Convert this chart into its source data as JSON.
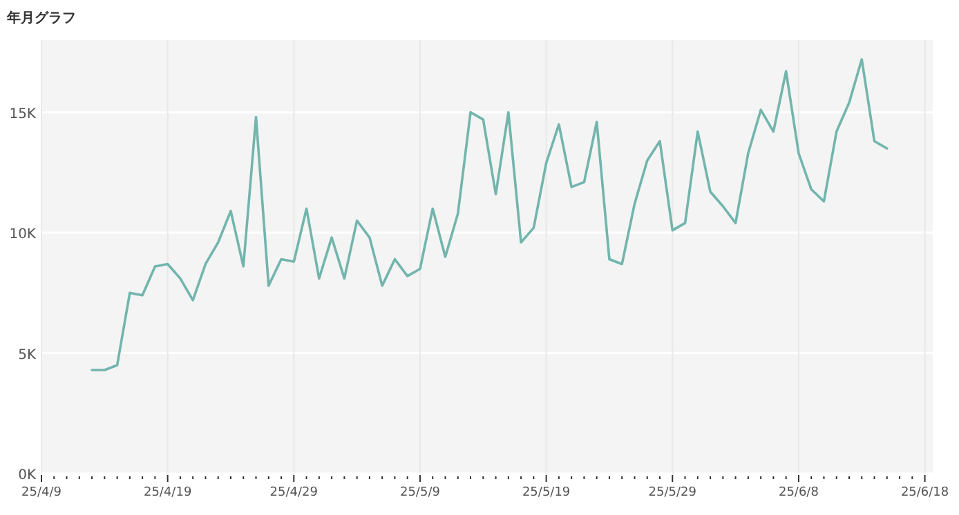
{
  "chart_data": {
    "type": "line",
    "title": "年月グラフ",
    "x": [
      "--04-13",
      "--04-14",
      "--04-15",
      "--04-16",
      "--04-17",
      "--04-18",
      "--04-19",
      "--04-20",
      "--04-21",
      "--04-22",
      "--04-23",
      "--04-24",
      "--04-25",
      "--04-26",
      "--04-27",
      "--04-28",
      "--04-29",
      "--04-30",
      "--05-01",
      "--05-02",
      "--05-03",
      "--05-04",
      "--05-05",
      "--05-06",
      "--05-07",
      "--05-08",
      "--05-09",
      "--05-10",
      "--05-11",
      "--05-12",
      "--05-13",
      "--05-14",
      "--05-15",
      "--05-16",
      "--05-17",
      "--05-18",
      "--05-19",
      "--05-20",
      "--05-21",
      "--05-22",
      "--05-23",
      "--05-24",
      "--05-25",
      "--05-26",
      "--05-27",
      "--05-28",
      "--05-29",
      "--05-30",
      "--05-31",
      "--06-01",
      "--06-02",
      "--06-03",
      "--06-04",
      "--06-05",
      "--06-06",
      "--06-07",
      "--06-08",
      "--06-09",
      "--06-10",
      "--06-11",
      "--06-12",
      "--06-13",
      "--06-14",
      "--06-15"
    ],
    "series": [
      {
        "color": "#72b5ad",
        "values": [
          4300,
          4300,
          4500,
          7500,
          7400,
          8600,
          8700,
          8100,
          7200,
          8700,
          9600,
          10900,
          8600,
          14800,
          7800,
          8900,
          8800,
          11000,
          8100,
          9800,
          8100,
          10500,
          9800,
          7800,
          8900,
          8200,
          8500,
          11000,
          9000,
          10800,
          15000,
          14700,
          11600,
          15000,
          9600,
          10200,
          12900,
          14500,
          11900,
          12100,
          14600,
          8900,
          8700,
          11200,
          13000,
          13800,
          10100,
          10400,
          14200,
          11700,
          11100,
          10400,
          13300,
          15100,
          14200,
          16700,
          13300,
          11800,
          11300,
          14200,
          15400,
          17200,
          13800,
          13500
        ]
      }
    ],
    "xlim": [
      "--04-09",
      "--06-18T15:00"
    ],
    "xticks": [
      {
        "value": "--04-09",
        "label": "25/4/9"
      },
      {
        "value": "--04-19",
        "label": "25/4/19"
      },
      {
        "value": "--04-29",
        "label": "25/4/29"
      },
      {
        "value": "--05-09",
        "label": "25/5/9"
      },
      {
        "value": "--05-19",
        "label": "25/5/19"
      },
      {
        "value": "--05-29",
        "label": "25/5/29"
      },
      {
        "value": "--06-08",
        "label": "25/6/8"
      },
      {
        "value": "--06-18",
        "label": "25/6/18"
      },
      {
        "value": "--04-10",
        "label": null
      },
      {
        "value": "--04-11",
        "label": null
      },
      {
        "value": "--04-12",
        "label": null
      },
      {
        "value": "--04-13",
        "label": null
      },
      {
        "value": "--04-14",
        "label": null
      },
      {
        "value": "--04-15",
        "label": null
      },
      {
        "value": "--04-16",
        "label": null
      },
      {
        "value": "--04-17",
        "label": null
      },
      {
        "value": "--04-18",
        "label": null
      },
      {
        "value": "--04-20",
        "label": null
      },
      {
        "value": "--04-21",
        "label": null
      },
      {
        "value": "--04-22",
        "label": null
      },
      {
        "value": "--04-23",
        "label": null
      },
      {
        "value": "--04-24",
        "label": null
      },
      {
        "value": "--04-25",
        "label": null
      },
      {
        "value": "--04-26",
        "label": null
      },
      {
        "value": "--04-27",
        "label": null
      },
      {
        "value": "--04-28",
        "label": null
      },
      {
        "value": "--04-30",
        "label": null
      },
      {
        "value": "--05-01",
        "label": null
      },
      {
        "value": "--05-02",
        "label": null
      },
      {
        "value": "--05-03",
        "label": null
      },
      {
        "value": "--05-04",
        "label": null
      },
      {
        "value": "--05-05",
        "label": null
      },
      {
        "value": "--05-06",
        "label": null
      },
      {
        "value": "--05-07",
        "label": null
      },
      {
        "value": "--05-08",
        "label": null
      },
      {
        "value": "--05-10",
        "label": null
      },
      {
        "value": "--05-11",
        "label": null
      },
      {
        "value": "--05-12",
        "label": null
      },
      {
        "value": "--05-13",
        "label": null
      },
      {
        "value": "--05-14",
        "label": null
      },
      {
        "value": "--05-15",
        "label": null
      },
      {
        "value": "--05-16",
        "label": null
      },
      {
        "value": "--05-17",
        "label": null
      },
      {
        "value": "--05-18",
        "label": null
      },
      {
        "value": "--05-20",
        "label": null
      },
      {
        "value": "--05-21",
        "label": null
      },
      {
        "value": "--05-22",
        "label": null
      },
      {
        "value": "--05-23",
        "label": null
      },
      {
        "value": "--05-24",
        "label": null
      },
      {
        "value": "--05-25",
        "label": null
      },
      {
        "value": "--05-26",
        "label": null
      },
      {
        "value": "--05-27",
        "label": null
      },
      {
        "value": "--05-28",
        "label": null
      },
      {
        "value": "--05-30",
        "label": null
      },
      {
        "value": "--05-31",
        "label": null
      },
      {
        "value": "--06-01",
        "label": null
      },
      {
        "value": "--06-02",
        "label": null
      },
      {
        "value": "--06-03",
        "label": null
      },
      {
        "value": "--06-04",
        "label": null
      },
      {
        "value": "--06-05",
        "label": null
      },
      {
        "value": "--06-06",
        "label": null
      },
      {
        "value": "--06-07",
        "label": null
      },
      {
        "value": "--06-09",
        "label": null
      },
      {
        "value": "--06-10",
        "label": null
      },
      {
        "value": "--06-11",
        "label": null
      },
      {
        "value": "--06-12",
        "label": null
      },
      {
        "value": "--06-13",
        "label": null
      },
      {
        "value": "--06-14",
        "label": null
      },
      {
        "value": "--06-15",
        "label": null
      },
      {
        "value": "--06-16",
        "label": null
      },
      {
        "value": "--06-17",
        "label": null
      }
    ],
    "ylim": [
      0,
      18000
    ],
    "yticks": [
      {
        "value": 0,
        "label": "0K"
      },
      {
        "value": 5000,
        "label": "5K"
      },
      {
        "value": 10000,
        "label": "10K"
      },
      {
        "value": 15000,
        "label": "15K"
      }
    ],
    "grid": true,
    "marker": "none",
    "line_style": "solid"
  }
}
